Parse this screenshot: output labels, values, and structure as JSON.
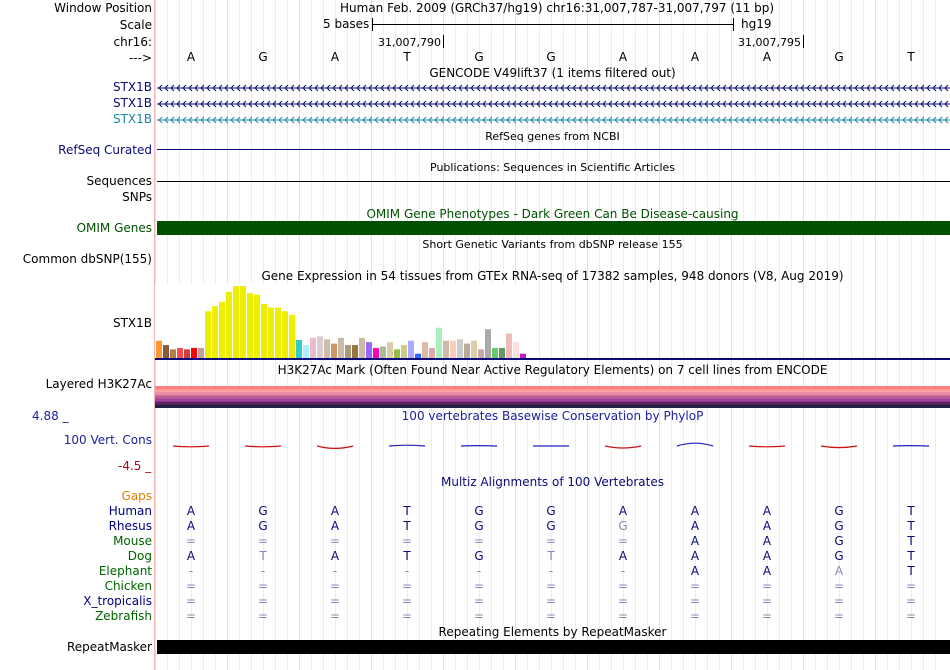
{
  "header": {
    "window_position_label": "Window Position",
    "window_position_value": "Human Feb. 2009 (GRCh37/hg19)   chr16:31,007,787-31,007,797 (11 bp)",
    "scale_label": "Scale",
    "scale_value": "5 bases",
    "scale_assembly": "hg19",
    "chrom_label": "chr16:",
    "pos_1": "31,007,790",
    "pos_2": "31,007,795",
    "arrow_label": "--->"
  },
  "sequence": [
    "A",
    "G",
    "A",
    "T",
    "G",
    "G",
    "A",
    "A",
    "A",
    "G",
    "T"
  ],
  "gencode": {
    "title": "GENCODE V49lift37 (1 items filtered out)",
    "transcripts": [
      {
        "name": "STX1B",
        "color": "#0a0a78"
      },
      {
        "name": "STX1B",
        "color": "#0a0a78"
      },
      {
        "name": "STX1B",
        "color": "#1a87a8"
      }
    ]
  },
  "refseq": {
    "title": "RefSeq genes from NCBI",
    "label": "RefSeq Curated"
  },
  "publications": {
    "title": "Publications: Sequences in Scientific Articles",
    "label_1": "Sequences",
    "label_2": "SNPs"
  },
  "omim": {
    "title": "OMIM Gene Phenotypes - Dark Green Can Be Disease-causing",
    "label": "OMIM Genes",
    "color": "#005000"
  },
  "dbsnp": {
    "title": "Short Genetic Variants from dbSNP release 155",
    "label": "Common dbSNP(155)"
  },
  "gtex": {
    "title": "Gene Expression in 54 tissues from GTEx RNA-seq of 17382 samples, 948 donors (V8, Aug 2019)",
    "label": "STX1B",
    "bars": [
      {
        "value": 0.24,
        "color": "#ff9933"
      },
      {
        "value": 0.18,
        "color": "#8a5a3c"
      },
      {
        "value": 0.12,
        "color": "#b07f50"
      },
      {
        "value": 0.14,
        "color": "#ff4d4d"
      },
      {
        "value": 0.12,
        "color": "#cc4040"
      },
      {
        "value": 0.14,
        "color": "#ff0000"
      },
      {
        "value": 0.14,
        "color": "#c0a0a0"
      },
      {
        "value": 0.65,
        "color": "#eeee00"
      },
      {
        "value": 0.72,
        "color": "#eeee00"
      },
      {
        "value": 0.78,
        "color": "#eeee00"
      },
      {
        "value": 0.92,
        "color": "#eeee00"
      },
      {
        "value": 1.0,
        "color": "#eeee00"
      },
      {
        "value": 1.0,
        "color": "#eeee00"
      },
      {
        "value": 0.9,
        "color": "#eeee00"
      },
      {
        "value": 0.88,
        "color": "#eeee00"
      },
      {
        "value": 0.75,
        "color": "#eeee00"
      },
      {
        "value": 0.7,
        "color": "#eeee00"
      },
      {
        "value": 0.7,
        "color": "#eeee00"
      },
      {
        "value": 0.65,
        "color": "#eeee00"
      },
      {
        "value": 0.6,
        "color": "#eeee00"
      },
      {
        "value": 0.25,
        "color": "#33cccc"
      },
      {
        "value": 0.18,
        "color": "#aaeeff"
      },
      {
        "value": 0.28,
        "color": "#eebbcc"
      },
      {
        "value": 0.3,
        "color": "#ddcccc"
      },
      {
        "value": 0.26,
        "color": "#ccbbaa"
      },
      {
        "value": 0.2,
        "color": "#cc9966"
      },
      {
        "value": 0.28,
        "color": "#ccbbaa"
      },
      {
        "value": 0.18,
        "color": "#aa9977"
      },
      {
        "value": 0.18,
        "color": "#997744"
      },
      {
        "value": 0.28,
        "color": "#ccbbaa"
      },
      {
        "value": 0.22,
        "color": "#9966ff"
      },
      {
        "value": 0.14,
        "color": "#ff00bb"
      },
      {
        "value": 0.16,
        "color": "#aabb99"
      },
      {
        "value": 0.22,
        "color": "#ddccaa"
      },
      {
        "value": 0.12,
        "color": "#99bb44"
      },
      {
        "value": 0.18,
        "color": "#cccc88"
      },
      {
        "value": 0.24,
        "color": "#aaaaff"
      },
      {
        "value": 0.06,
        "color": "#3366ff"
      },
      {
        "value": 0.22,
        "color": "#ddbbaa"
      },
      {
        "value": 0.14,
        "color": "#ddaaaa"
      },
      {
        "value": 0.42,
        "color": "#aaeebb"
      },
      {
        "value": 0.24,
        "color": "#ccbbaa"
      },
      {
        "value": 0.24,
        "color": "#ffccbb"
      },
      {
        "value": 0.26,
        "color": "#cccccc"
      },
      {
        "value": 0.2,
        "color": "#bbaa99"
      },
      {
        "value": 0.24,
        "color": "#ddccaa"
      },
      {
        "value": 0.12,
        "color": "#ccaaaa"
      },
      {
        "value": 0.4,
        "color": "#aaaaaa"
      },
      {
        "value": 0.14,
        "color": "#66cc66"
      },
      {
        "value": 0.14,
        "color": "#669966"
      },
      {
        "value": 0.34,
        "color": "#eebbbb"
      },
      {
        "value": 0.22,
        "color": "#ffdddd"
      },
      {
        "value": 0.06,
        "color": "#bb22bb"
      },
      {
        "value": 0.02,
        "color": "#ffffff"
      }
    ]
  },
  "h3k27ac": {
    "title": "H3K27Ac Mark (Often Found Near Active Regulatory Elements) on 7 cell lines from ENCODE",
    "label": "Layered H3K27Ac",
    "layer_colors": [
      "#ff8080",
      "#ffa0a0",
      "#e68aa6",
      "#c06090",
      "#a040a0",
      "#602060",
      "#202040"
    ]
  },
  "phylop": {
    "title": "100 vertebrates Basewise Conservation by PhyloP",
    "label": "100 Vert. Cons",
    "max": "4.88 _",
    "min": "-4.5 _",
    "scores": [
      -0.1,
      -0.1,
      -0.3,
      0.1,
      0.05,
      0.0,
      -0.25,
      0.35,
      -0.1,
      -0.2,
      0.05
    ]
  },
  "multiz": {
    "title": "Multiz Alignments of 100 Vertebrates",
    "gaps_label": "Gaps",
    "rows": [
      {
        "species": "Human",
        "color": "#000080",
        "bases": [
          "A",
          "G",
          "A",
          "T",
          "G",
          "G",
          "A",
          "A",
          "A",
          "G",
          "T"
        ],
        "faint": [
          false,
          false,
          false,
          false,
          false,
          false,
          false,
          false,
          false,
          false,
          false
        ]
      },
      {
        "species": "Rhesus",
        "color": "#000080",
        "bases": [
          "A",
          "G",
          "A",
          "T",
          "G",
          "G",
          "G",
          "A",
          "A",
          "G",
          "T"
        ],
        "faint": [
          false,
          false,
          false,
          false,
          false,
          false,
          true,
          false,
          false,
          false,
          false
        ]
      },
      {
        "species": "Mouse",
        "color": "#006400",
        "bases": [
          "=",
          "=",
          "=",
          "=",
          "=",
          "=",
          "=",
          "A",
          "A",
          "G",
          "T"
        ],
        "faint": [
          true,
          true,
          true,
          true,
          true,
          true,
          true,
          false,
          false,
          false,
          false
        ]
      },
      {
        "species": "Dog",
        "color": "#006400",
        "bases": [
          "A",
          "T",
          "A",
          "T",
          "G",
          "T",
          "A",
          "A",
          "A",
          "G",
          "T"
        ],
        "faint": [
          false,
          true,
          false,
          false,
          false,
          true,
          false,
          false,
          false,
          false,
          false
        ]
      },
      {
        "species": "Elephant",
        "color": "#006400",
        "bases": [
          "-",
          "-",
          "-",
          "-",
          "-",
          "-",
          "-",
          "A",
          "A",
          "A",
          "T"
        ],
        "faint": [
          true,
          true,
          true,
          true,
          true,
          true,
          true,
          false,
          false,
          true,
          false
        ]
      },
      {
        "species": "Chicken",
        "color": "#006400",
        "bases": [
          "=",
          "=",
          "=",
          "=",
          "=",
          "=",
          "=",
          "=",
          "=",
          "=",
          "="
        ],
        "faint": [
          true,
          true,
          true,
          true,
          true,
          true,
          true,
          true,
          true,
          true,
          true
        ]
      },
      {
        "species": "X_tropicalis",
        "color": "#000080",
        "bases": [
          "=",
          "=",
          "=",
          "=",
          "=",
          "=",
          "=",
          "=",
          "=",
          "=",
          "="
        ],
        "faint": [
          true,
          true,
          true,
          true,
          true,
          true,
          true,
          true,
          true,
          true,
          true
        ]
      },
      {
        "species": "Zebrafish",
        "color": "#006400",
        "bases": [
          "=",
          "=",
          "=",
          "=",
          "=",
          "=",
          "=",
          "=",
          "=",
          "=",
          "="
        ],
        "faint": [
          true,
          true,
          true,
          true,
          true,
          true,
          true,
          true,
          true,
          true,
          true
        ]
      }
    ]
  },
  "repeatmasker": {
    "title": "Repeating Elements by RepeatMasker",
    "label": "RepeatMasker"
  }
}
